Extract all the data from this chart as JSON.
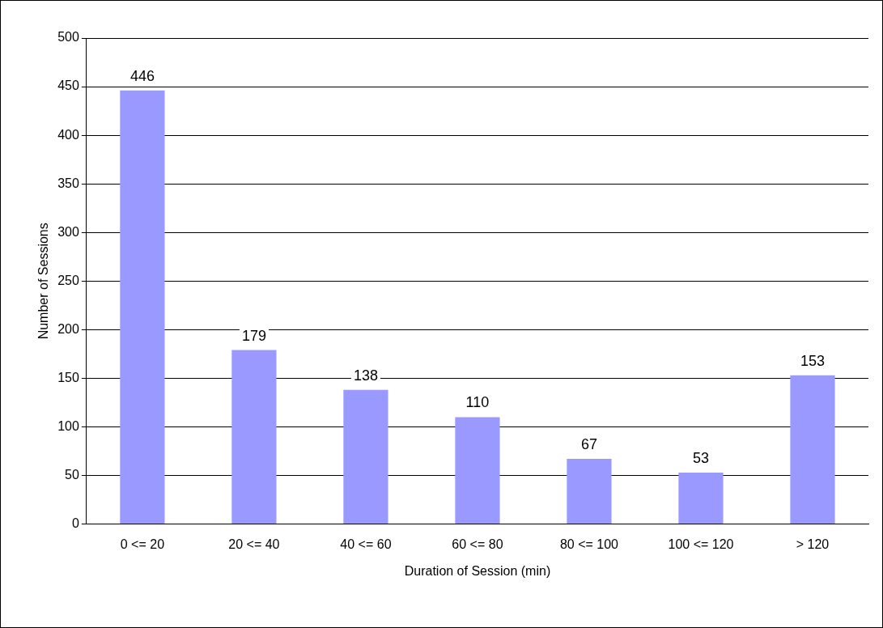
{
  "chart_data": {
    "type": "bar",
    "xlabel": "Duration of Session (min)",
    "ylabel": "Number of Sessions",
    "categories": [
      "0 <= 20",
      "20 <= 40",
      "40 <= 60",
      "60 <= 80",
      "80 <= 100",
      "100 <= 120",
      "> 120"
    ],
    "values": [
      446,
      179,
      138,
      110,
      67,
      53,
      153
    ],
    "color": "#9999ff",
    "ylim": [
      0,
      500
    ],
    "yticks": [
      0,
      50,
      100,
      150,
      200,
      250,
      300,
      350,
      400,
      450,
      500
    ],
    "grid": "y",
    "data_labels": true
  }
}
